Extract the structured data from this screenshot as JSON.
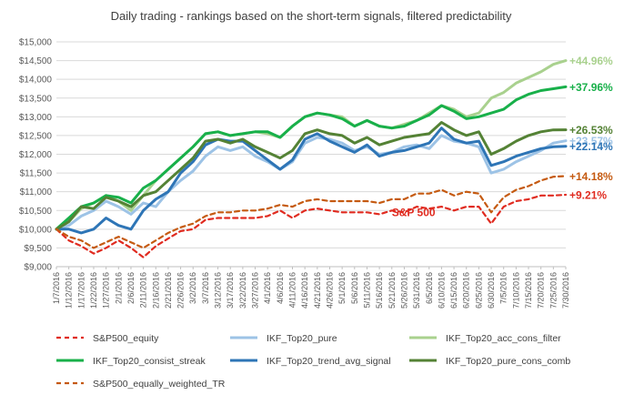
{
  "chart_data": {
    "type": "line",
    "title": "Daily trading - rankings based on the short-term  signals, filtered predictability",
    "xlabel": "",
    "ylabel": "",
    "ylim": [
      9000,
      15000
    ],
    "yticks": [
      9000,
      9500,
      10000,
      10500,
      11000,
      11500,
      12000,
      12500,
      13000,
      13500,
      14000,
      14500,
      15000
    ],
    "ytick_labels": [
      "$9,000",
      "$9,500",
      "$10,000",
      "$10,500",
      "$11,000",
      "$11,500",
      "$12,000",
      "$12,500",
      "$13,000",
      "$13,500",
      "$14,000",
      "$14,500",
      "$15,000"
    ],
    "x_tick_labels": [
      "1/7/2016",
      "1/12/2016",
      "1/17/2016",
      "1/22/2016",
      "1/27/2016",
      "2/1/2016",
      "2/6/2016",
      "2/11/2016",
      "2/16/2016",
      "2/21/2016",
      "2/26/2016",
      "3/2/2016",
      "3/7/2016",
      "3/12/2016",
      "3/17/2016",
      "3/22/2016",
      "3/27/2016",
      "4/1/2016",
      "4/6/2016",
      "4/11/2016",
      "4/16/2016",
      "4/21/2016",
      "4/26/2016",
      "5/1/2016",
      "5/6/2016",
      "5/11/2016",
      "5/16/2016",
      "5/21/2016",
      "5/26/2016",
      "5/31/2016",
      "6/5/2016",
      "6/10/2016",
      "6/15/2016",
      "6/20/2016",
      "6/25/2016",
      "6/30/2016",
      "7/5/2016",
      "7/10/2016",
      "7/15/2016",
      "7/20/2016",
      "7/25/2016",
      "7/30/2016"
    ],
    "grid": "horizontal",
    "legend_position": "bottom",
    "x": [
      "1/7/2016",
      "1/12/2016",
      "1/17/2016",
      "1/22/2016",
      "1/27/2016",
      "2/1/2016",
      "2/6/2016",
      "2/11/2016",
      "2/16/2016",
      "2/21/2016",
      "2/26/2016",
      "3/2/2016",
      "3/7/2016",
      "3/12/2016",
      "3/17/2016",
      "3/22/2016",
      "3/27/2016",
      "4/1/2016",
      "4/6/2016",
      "4/11/2016",
      "4/16/2016",
      "4/21/2016",
      "4/26/2016",
      "5/1/2016",
      "5/6/2016",
      "5/11/2016",
      "5/16/2016",
      "5/21/2016",
      "5/26/2016",
      "5/31/2016",
      "6/5/2016",
      "6/10/2016",
      "6/15/2016",
      "6/20/2016",
      "6/25/2016",
      "6/30/2016",
      "7/5/2016",
      "7/10/2016",
      "7/15/2016",
      "7/20/2016",
      "7/25/2016",
      "7/30/2016"
    ],
    "series": [
      {
        "name": "S&P500_equity",
        "color": "#e02b20",
        "dash": "dashed",
        "values": [
          10000,
          9700,
          9550,
          9350,
          9500,
          9700,
          9500,
          9250,
          9550,
          9750,
          9950,
          10000,
          10250,
          10300,
          10300,
          10300,
          10300,
          10350,
          10500,
          10300,
          10500,
          10550,
          10500,
          10450,
          10450,
          10450,
          10400,
          10500,
          10450,
          10600,
          10550,
          10600,
          10500,
          10600,
          10600,
          10150,
          10600,
          10750,
          10800,
          10900,
          10900,
          10920
        ],
        "end_label": "+9.21%"
      },
      {
        "name": "IKF_Top20_pure",
        "color": "#9dc3e6",
        "dash": "solid",
        "values": [
          10000,
          10100,
          10350,
          10500,
          10750,
          10600,
          10400,
          10700,
          10600,
          11000,
          11300,
          11550,
          11950,
          12200,
          12100,
          12200,
          11950,
          11800,
          11600,
          11800,
          12300,
          12450,
          12400,
          12300,
          12100,
          12200,
          12000,
          12050,
          12200,
          12250,
          12150,
          12500,
          12350,
          12300,
          12200,
          11500,
          11600,
          11800,
          11950,
          12100,
          12300,
          12360
        ],
        "end_label": "+23.57%"
      },
      {
        "name": "IKF_Top20_acc_cons_filter",
        "color": "#a9d18e",
        "dash": "solid",
        "values": [
          10000,
          10200,
          10550,
          10700,
          10900,
          10750,
          10500,
          10900,
          11300,
          11600,
          11900,
          12200,
          12550,
          12600,
          12500,
          12550,
          12600,
          12550,
          12450,
          12750,
          13000,
          13100,
          13050,
          13000,
          12750,
          12900,
          12750,
          12700,
          12800,
          12900,
          13100,
          13300,
          13200,
          13000,
          13100,
          13500,
          13650,
          13900,
          14050,
          14200,
          14400,
          14500
        ],
        "end_label": "+44.96%"
      },
      {
        "name": "IKF_Top20_consist_streak",
        "color": "#18b04a",
        "dash": "solid",
        "values": [
          10000,
          10300,
          10600,
          10700,
          10900,
          10850,
          10700,
          11100,
          11300,
          11600,
          11900,
          12200,
          12550,
          12600,
          12500,
          12550,
          12600,
          12600,
          12450,
          12750,
          13000,
          13100,
          13050,
          12950,
          12750,
          12900,
          12750,
          12700,
          12750,
          12900,
          13050,
          13300,
          13150,
          12950,
          13000,
          13100,
          13200,
          13450,
          13600,
          13700,
          13750,
          13800
        ],
        "end_label": "+37.96%"
      },
      {
        "name": "IKF_Top20_trend_avg_signal",
        "color": "#2e75b6",
        "dash": "solid",
        "values": [
          10000,
          10000,
          9900,
          10000,
          10300,
          10100,
          10000,
          10500,
          10800,
          11000,
          11500,
          11800,
          12250,
          12400,
          12350,
          12350,
          12100,
          11850,
          11600,
          11850,
          12400,
          12550,
          12350,
          12200,
          12050,
          12250,
          11950,
          12050,
          12100,
          12200,
          12300,
          12700,
          12400,
          12300,
          12350,
          11700,
          11800,
          11950,
          12050,
          12150,
          12200,
          12214
        ],
        "end_label": "+22.14%"
      },
      {
        "name": "IKF_Top20_pure_cons_comb",
        "color": "#548235",
        "dash": "solid",
        "values": [
          10000,
          10200,
          10600,
          10550,
          10850,
          10750,
          10600,
          10900,
          11000,
          11300,
          11600,
          11900,
          12350,
          12400,
          12300,
          12400,
          12200,
          12050,
          11900,
          12100,
          12550,
          12650,
          12550,
          12500,
          12300,
          12450,
          12250,
          12350,
          12450,
          12500,
          12550,
          12850,
          12650,
          12500,
          12600,
          12000,
          12150,
          12350,
          12500,
          12600,
          12650,
          12653
        ],
        "end_label": "+26.53%"
      },
      {
        "name": "S&P500_equally_weighted_TR",
        "color": "#c55a11",
        "dash": "dashed",
        "values": [
          10000,
          9800,
          9700,
          9500,
          9650,
          9800,
          9650,
          9500,
          9700,
          9900,
          10050,
          10150,
          10350,
          10450,
          10450,
          10500,
          10500,
          10550,
          10650,
          10600,
          10750,
          10800,
          10750,
          10750,
          10750,
          10750,
          10700,
          10800,
          10800,
          10950,
          10950,
          11050,
          10900,
          11000,
          10950,
          10450,
          10850,
          11050,
          11150,
          11300,
          11400,
          11418
        ],
        "end_label": "+14.18%"
      }
    ],
    "annotations": [
      {
        "text": "S&P 500",
        "x": "5/21/2016",
        "y": 10350,
        "color": "#e02b20"
      }
    ]
  }
}
